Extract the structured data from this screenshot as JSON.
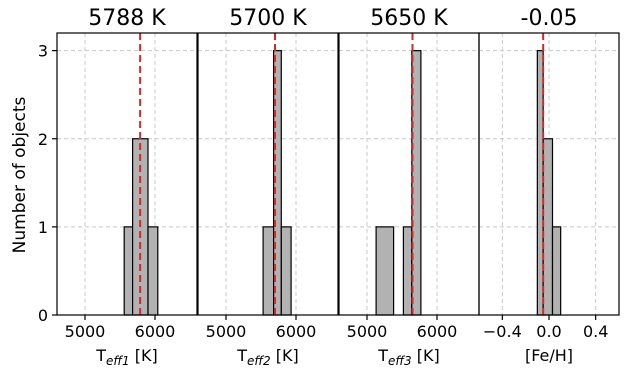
{
  "chart_data": {
    "type": "histogram",
    "ylabel": "Number of objects",
    "ylim": [
      0,
      3.2
    ],
    "yticks": [
      0,
      1,
      2,
      3
    ],
    "grid": true,
    "panels": [
      {
        "title": "5788 K",
        "xlabel": {
          "main": "T",
          "sub": "eff1",
          "unit": " [K]"
        },
        "xlim": [
          4600,
          6600
        ],
        "xticks": [
          5000,
          6000
        ],
        "xtick_labels": [
          "5000",
          "6000"
        ],
        "reference_value": 5788,
        "bins": [
          {
            "x0": 5560,
            "x1": 5680,
            "count": 1
          },
          {
            "x0": 5680,
            "x1": 5900,
            "count": 2
          },
          {
            "x0": 5900,
            "x1": 6040,
            "count": 1
          }
        ]
      },
      {
        "title": "5700 K",
        "xlabel": {
          "main": "T",
          "sub": "eff2",
          "unit": " [K]"
        },
        "xlim": [
          4600,
          6600
        ],
        "xticks": [
          5000,
          6000
        ],
        "xtick_labels": [
          "5000",
          "6000"
        ],
        "reference_value": 5700,
        "bins": [
          {
            "x0": 5530,
            "x1": 5680,
            "count": 1
          },
          {
            "x0": 5680,
            "x1": 5790,
            "count": 3
          },
          {
            "x0": 5790,
            "x1": 5930,
            "count": 1
          }
        ]
      },
      {
        "title": "5650 K",
        "xlabel": {
          "main": "T",
          "sub": "eff3",
          "unit": " [K]"
        },
        "xlim": [
          4600,
          6600
        ],
        "xticks": [
          5000,
          6000
        ],
        "xtick_labels": [
          "5000",
          "6000"
        ],
        "reference_value": 5650,
        "bins": [
          {
            "x0": 5130,
            "x1": 5380,
            "count": 1
          },
          {
            "x0": 5520,
            "x1": 5640,
            "count": 1
          },
          {
            "x0": 5640,
            "x1": 5770,
            "count": 3
          }
        ]
      },
      {
        "title": "-0.05",
        "xlabel": {
          "main": "[Fe/H]",
          "sub": "",
          "unit": ""
        },
        "xlim": [
          -0.6,
          0.6
        ],
        "xticks": [
          -0.4,
          0.0,
          0.4
        ],
        "xtick_labels": [
          "−0.4",
          "0.0",
          "0.4"
        ],
        "reference_value": -0.05,
        "bins": [
          {
            "x0": -0.1,
            "x1": -0.05,
            "count": 3
          },
          {
            "x0": -0.05,
            "x1": 0.03,
            "count": 2
          },
          {
            "x0": 0.03,
            "x1": 0.1,
            "count": 1
          }
        ]
      }
    ]
  }
}
